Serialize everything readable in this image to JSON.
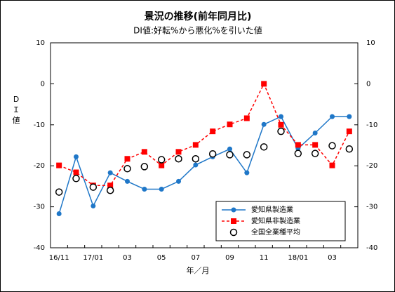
{
  "chart_data": {
    "type": "line",
    "title": "景況の推移(前年同月比)",
    "subtitle": "DI値:好転%から悪化%を引いた値",
    "ylabel": "ＤＩ値",
    "xlabel": "年／月",
    "categories": [
      "16/11",
      null,
      "17/01",
      null,
      "03",
      null,
      "05",
      null,
      "07",
      null,
      "09",
      null,
      "11",
      null,
      "18/01",
      null,
      "03",
      null
    ],
    "series": [
      {
        "name": "愛知県製造業",
        "color": "#1f77c8",
        "style": "solid-dot",
        "values": [
          -31.7,
          -17.8,
          -29.8,
          -21.7,
          -23.8,
          -25.7,
          -25.7,
          -23.8,
          -19.8,
          -17.8,
          -15.9,
          -21.7,
          -9.9,
          -8.0,
          -15.8,
          -12.0,
          -8.0,
          -8.0
        ]
      },
      {
        "name": "愛知県非製造業",
        "color": "#ff0000",
        "style": "dashed-square",
        "values": [
          -19.9,
          -21.6,
          -24.8,
          -24.8,
          -18.3,
          -16.6,
          -19.9,
          -16.6,
          -14.9,
          -11.6,
          -9.9,
          -8.4,
          0.0,
          -10.0,
          -14.9,
          -14.9,
          -19.9,
          -11.6
        ]
      },
      {
        "name": "全国全業種平均",
        "color": "#000000",
        "style": "open-circle",
        "values": [
          -26.4,
          -23.1,
          -25.2,
          -26.0,
          -20.7,
          -20.2,
          -18.5,
          -18.3,
          -18.3,
          -17.1,
          -17.3,
          -17.3,
          -15.4,
          -11.6,
          -17.0,
          -17.0,
          -15.1,
          -15.9
        ]
      }
    ],
    "ylim": [
      -40,
      10
    ],
    "yticks": [
      -40,
      -30,
      -20,
      -10,
      0,
      10
    ],
    "y2lim": [
      -40,
      10
    ],
    "y2ticks": [
      -40,
      -30,
      -20,
      -10,
      0,
      10
    ],
    "grid": false,
    "legend": "lower-right"
  }
}
